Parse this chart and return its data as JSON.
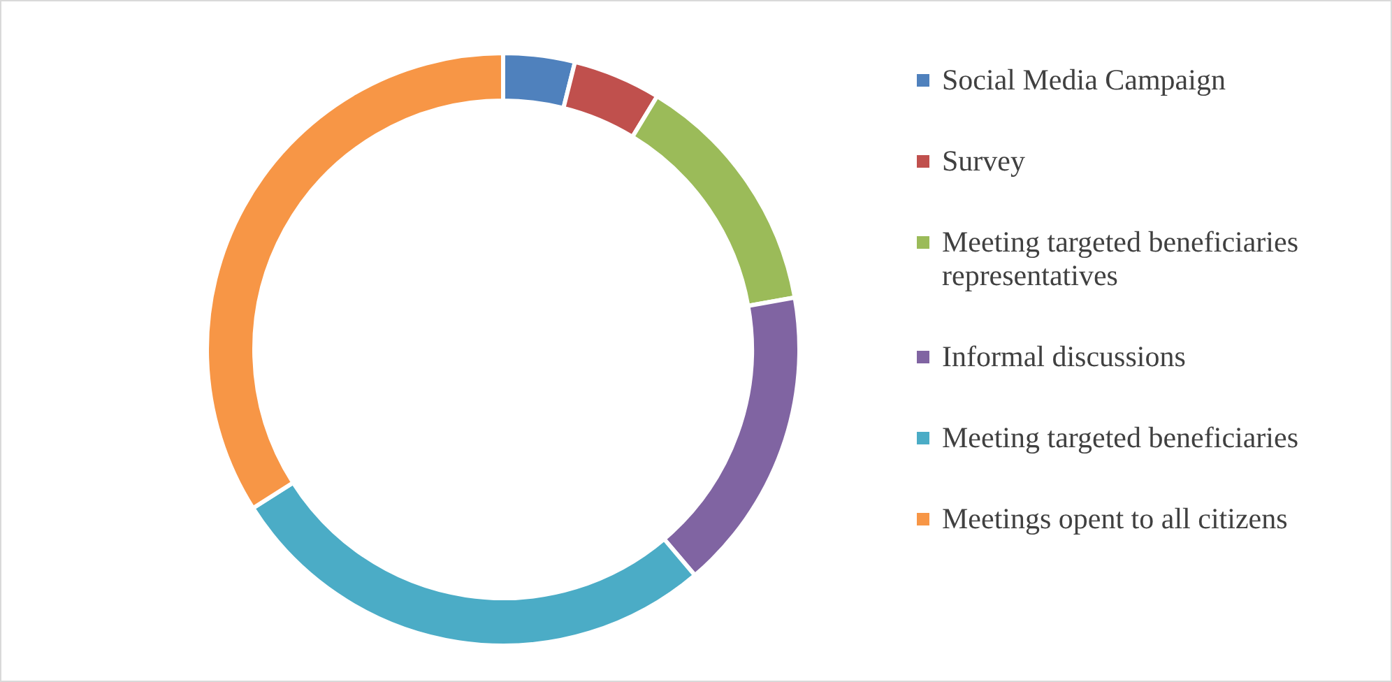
{
  "chart_data": {
    "type": "donut",
    "categories": [
      "Social Media Campaign",
      "Survey",
      "Meeting targeted beneficiaries representatives",
      "Informal discussions",
      "Meeting targeted beneficiaries",
      "Meetings opent to all citizens"
    ],
    "values": [
      3.9,
      4.8,
      13.5,
      16.6,
      27.2,
      34.0
    ],
    "colors": [
      "#4f81bd",
      "#c0504d",
      "#9bbb59",
      "#8064a2",
      "#4bacc6",
      "#f79646"
    ],
    "legend": "right"
  }
}
